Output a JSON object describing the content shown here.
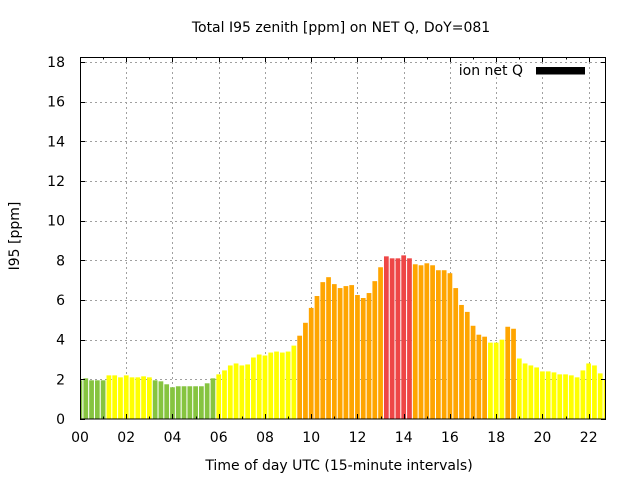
{
  "chart_data": {
    "type": "bar",
    "title": "Total I95 zenith [ppm] on NET Q, DoY=081",
    "xlabel": "Time of day UTC (15-minute intervals)",
    "ylabel": "I95 [ppm]",
    "xlim": [
      0,
      91
    ],
    "ylim": [
      0,
      18.25
    ],
    "grid": true,
    "x": [
      0,
      1,
      2,
      3,
      4,
      5,
      6,
      7,
      8,
      9,
      10,
      11,
      12,
      13,
      14,
      15,
      16,
      17,
      18,
      19,
      20,
      21,
      22,
      23,
      24,
      25,
      26,
      27,
      28,
      29,
      30,
      31,
      32,
      33,
      34,
      35,
      36,
      37,
      38,
      39,
      40,
      41,
      42,
      43,
      44,
      45,
      46,
      47,
      48,
      49,
      50,
      51,
      52,
      53,
      54,
      55,
      56,
      57,
      58,
      59,
      60,
      61,
      62,
      63,
      64,
      65,
      66,
      67,
      68,
      69,
      70,
      71,
      72,
      73,
      74,
      75,
      76,
      77,
      78,
      79,
      80,
      81,
      82,
      83,
      84,
      85,
      86,
      87,
      88,
      89,
      90,
      91
    ],
    "series": [
      {
        "name": "ion net Q",
        "key_color": "#000000",
        "values": [
          1.95,
          2.05,
          1.95,
          1.95,
          1.95,
          2.2,
          2.2,
          2.1,
          2.2,
          2.1,
          2.1,
          2.15,
          2.1,
          1.95,
          1.9,
          1.75,
          1.6,
          1.65,
          1.65,
          1.65,
          1.65,
          1.65,
          1.8,
          2.05,
          2.25,
          2.45,
          2.7,
          2.8,
          2.7,
          2.75,
          3.1,
          3.25,
          3.2,
          3.35,
          3.4,
          3.35,
          3.4,
          3.7,
          4.2,
          4.85,
          5.6,
          6.2,
          6.9,
          7.15,
          6.8,
          6.6,
          6.7,
          6.75,
          6.25,
          6.1,
          6.35,
          6.95,
          7.65,
          8.2,
          8.1,
          8.1,
          8.25,
          8.1,
          7.8,
          7.75,
          7.85,
          7.75,
          7.5,
          7.5,
          7.35,
          6.6,
          5.75,
          5.4,
          4.7,
          4.25,
          4.15,
          3.85,
          3.85,
          4.0,
          4.65,
          4.55,
          3.05,
          2.8,
          2.7,
          2.6,
          2.4,
          2.4,
          2.35,
          2.25,
          2.25,
          2.2,
          2.1,
          2.45,
          2.8,
          2.7,
          2.3,
          1.97
        ],
        "levels": [
          "G",
          "G",
          "G",
          "G",
          "G",
          "Y",
          "Y",
          "Y",
          "Y",
          "Y",
          "Y",
          "Y",
          "Y",
          "G",
          "G",
          "G",
          "G",
          "G",
          "G",
          "G",
          "G",
          "G",
          "G",
          "G",
          "Y",
          "Y",
          "Y",
          "Y",
          "Y",
          "Y",
          "Y",
          "Y",
          "Y",
          "Y",
          "Y",
          "Y",
          "Y",
          "Y",
          "O",
          "O",
          "O",
          "O",
          "O",
          "O",
          "O",
          "O",
          "O",
          "O",
          "O",
          "O",
          "O",
          "O",
          "O",
          "R",
          "R",
          "R",
          "R",
          "R",
          "O",
          "O",
          "O",
          "O",
          "O",
          "O",
          "O",
          "O",
          "O",
          "O",
          "O",
          "O",
          "O",
          "Y",
          "Y",
          "Y",
          "O",
          "O",
          "Y",
          "Y",
          "Y",
          "Y",
          "Y",
          "Y",
          "Y",
          "Y",
          "Y",
          "Y",
          "Y",
          "Y",
          "Y",
          "Y",
          "Y",
          "Y"
        ]
      }
    ],
    "level_colors": {
      "G": "#86c440",
      "Y": "#ffff00",
      "O": "#ffa500",
      "R": "#ee4646"
    },
    "xticks": {
      "values": [
        0,
        8,
        16,
        24,
        32,
        40,
        48,
        56,
        64,
        72,
        80,
        88
      ],
      "labels": [
        "00",
        "02",
        "04",
        "06",
        "08",
        "10",
        "12",
        "14",
        "16",
        "18",
        "20",
        "22"
      ],
      "minor": [
        4,
        12,
        20,
        28,
        36,
        44,
        52,
        60,
        68,
        76,
        84
      ]
    },
    "yticks": {
      "values": [
        0,
        2,
        4,
        6,
        8,
        10,
        12,
        14,
        16,
        18
      ],
      "labels": [
        "0",
        "2",
        "4",
        "6",
        "8",
        "10",
        "12",
        "14",
        "16",
        "18"
      ]
    },
    "legend": {
      "position": "top-right"
    }
  }
}
